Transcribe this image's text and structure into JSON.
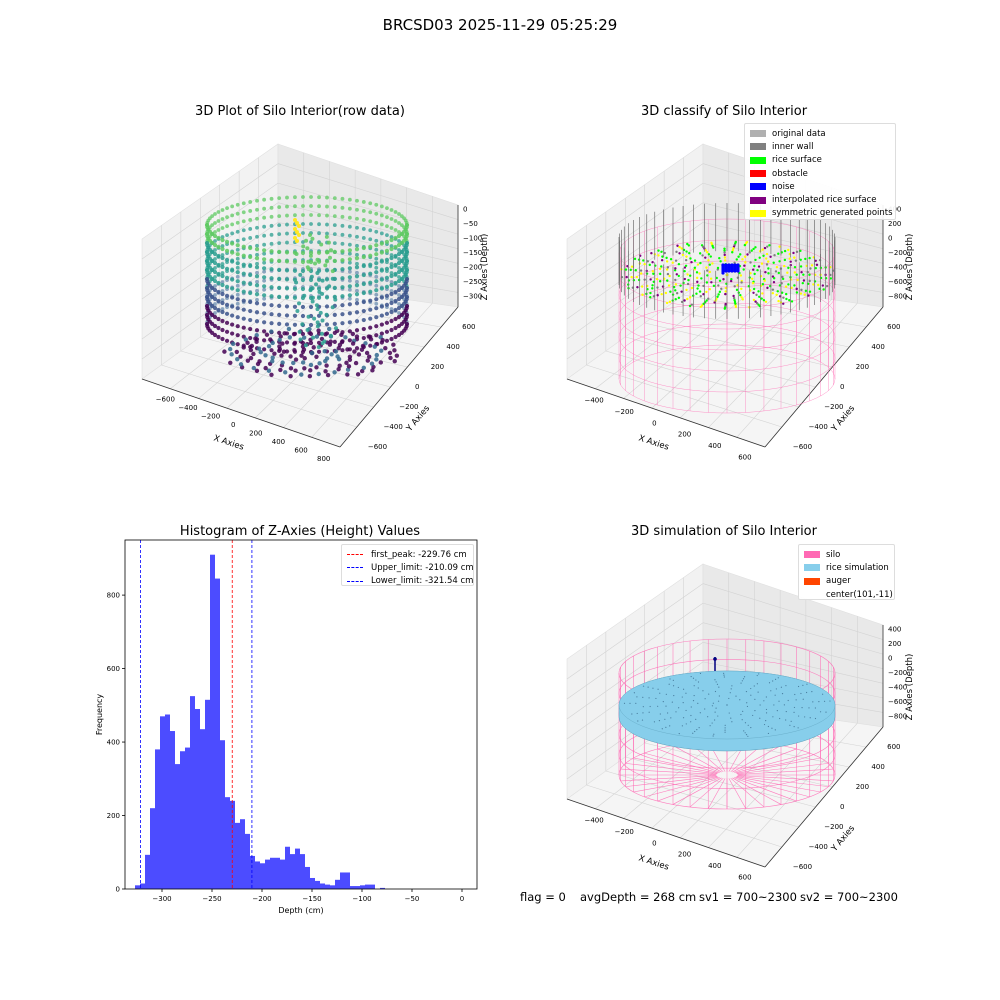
{
  "suptitle": "BRCSD03 2025-11-29 05:25:29",
  "colors": {
    "viridis_dark": "#440154",
    "viridis_mid": "#2a9d8f",
    "viridis_light": "#5ec962",
    "viridis_yellow": "#fde725",
    "pink": "#ff69b4",
    "histogram": "#4c4cff",
    "first_peak": "#ff0000",
    "limits": "#0000ff"
  },
  "panel_raw": {
    "title": "3D Plot of Silo Interior(row data)",
    "xlabel": "X Axies",
    "ylabel": "Y Axies",
    "zlabel": "Z Axies (Depth)",
    "xticks": [
      "−600",
      "−400",
      "−200",
      "0",
      "200",
      "400",
      "600",
      "800"
    ],
    "yticks": [
      "600",
      "400",
      "200",
      "0",
      "−200",
      "−400",
      "−600"
    ],
    "zticks": [
      "0",
      "−50",
      "−100",
      "−150",
      "−200",
      "−250",
      "−300"
    ]
  },
  "panel_classify": {
    "title": "3D classify of Silo Interior",
    "xlabel": "X Axies",
    "ylabel": "Y Axies",
    "zlabel": "Z Axies (Depth)",
    "xticks": [
      "−400",
      "−200",
      "0",
      "200",
      "400",
      "600"
    ],
    "yticks": [
      "600",
      "400",
      "200",
      "0",
      "−200",
      "−400",
      "−600"
    ],
    "zticks": [
      "400",
      "200",
      "0",
      "−200",
      "−400",
      "−600",
      "−800"
    ],
    "legend": [
      {
        "label": "original data",
        "color": "#b0b0b0"
      },
      {
        "label": "inner wall",
        "color": "#808080"
      },
      {
        "label": "rice surface",
        "color": "#00ff00"
      },
      {
        "label": "obstacle",
        "color": "#ff0000"
      },
      {
        "label": "noise",
        "color": "#0000ff"
      },
      {
        "label": "interpolated rice surface",
        "color": "#800080"
      },
      {
        "label": "symmetric generated points",
        "color": "#ffff00"
      }
    ]
  },
  "panel_sim": {
    "title": "3D simulation of Silo Interior",
    "xlabel": "X Axies",
    "ylabel": "Y Axies",
    "zlabel": "Z Axies (Depth)",
    "xticks": [
      "−400",
      "−200",
      "0",
      "200",
      "400",
      "600"
    ],
    "yticks": [
      "600",
      "400",
      "200",
      "0",
      "−200",
      "−400",
      "−600"
    ],
    "zticks": [
      "400",
      "200",
      "0",
      "−200",
      "−400",
      "−600",
      "−800"
    ],
    "legend": [
      {
        "label": "silo",
        "color": "#ff69b4"
      },
      {
        "label": "rice simulation",
        "color": "#87ceeb"
      },
      {
        "label": "auger",
        "color": "#ff4500"
      },
      {
        "label": "center(101,-11)",
        "color": ""
      }
    ]
  },
  "footer": {
    "flag": "flag = 0",
    "avg": "avgDepth = 268 cm",
    "sv1": "sv1 = 700~2300",
    "sv2": "sv2 = 700~2300"
  },
  "chart_data": [
    {
      "type": "histogram",
      "title": "Histogram of Z-Axies (Height) Values",
      "xlabel": "Depth (cm)",
      "ylabel": "Frequency",
      "xlim": [
        -337,
        15
      ],
      "ylim": [
        0,
        950
      ],
      "xticks": [
        -300,
        -250,
        -200,
        -150,
        -100,
        -50,
        0
      ],
      "xtick_labels": [
        "−300",
        "−250",
        "−200",
        "−150",
        "−100",
        "−50",
        "0"
      ],
      "yticks": [
        0,
        200,
        400,
        600,
        800
      ],
      "bin_start": -327,
      "bin_width": 5,
      "counts": [
        10,
        15,
        93,
        220,
        380,
        470,
        475,
        430,
        340,
        375,
        385,
        525,
        490,
        435,
        515,
        910,
        845,
        405,
        250,
        240,
        180,
        190,
        150,
        90,
        75,
        70,
        80,
        85,
        85,
        80,
        115,
        95,
        110,
        95,
        60,
        30,
        22,
        15,
        12,
        10,
        25,
        45,
        45,
        8,
        8,
        10,
        12,
        12,
        0,
        3
      ],
      "vlines": [
        {
          "label": "first_peak: -229.76 cm",
          "x": -229.76,
          "color": "#ff0000"
        },
        {
          "label": "Upper_limit: -210.09 cm",
          "x": -210.09,
          "color": "#0000ff"
        },
        {
          "label": "Lower_limit: -321.54 cm",
          "x": -321.54,
          "color": "#0000ff"
        }
      ]
    }
  ]
}
